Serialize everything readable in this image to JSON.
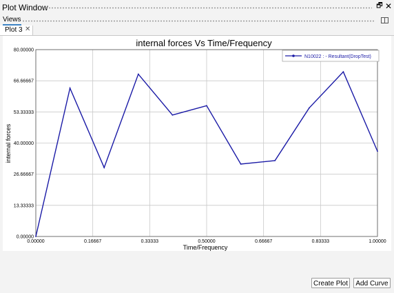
{
  "window": {
    "title": "Plot Window",
    "restore_glyph": "🗗",
    "close_glyph": "✕"
  },
  "views": {
    "label": "Views"
  },
  "tabs": [
    {
      "label": "Plot 3",
      "close_glyph": "✕"
    }
  ],
  "buttons": {
    "create_plot": "Create Plot",
    "add_curve": "Add Curve"
  },
  "colors": {
    "series": "#1a1aa6",
    "accent": "#3b82c4"
  },
  "chart_data": {
    "type": "line",
    "title": "internal forces Vs Time/Frequency",
    "xlabel": "Time/Frequency",
    "ylabel": "internal forces",
    "xlim": [
      0,
      1
    ],
    "ylim": [
      0,
      80
    ],
    "x_ticks": [
      0,
      0.16667,
      0.33333,
      0.5,
      0.66667,
      0.83333,
      1
    ],
    "x_tick_labels": [
      "0.00000",
      "0.16667",
      "0.33333",
      "0.50000",
      "0.66667",
      "0.83333",
      "1.00000"
    ],
    "y_ticks": [
      0,
      13.33333,
      26.66667,
      40,
      53.33333,
      66.66667,
      80
    ],
    "y_tick_labels": [
      "0.00000",
      "13.33333",
      "26.66667",
      "40.00000",
      "53.33333",
      "66.66667",
      "80.00000"
    ],
    "grid": true,
    "legend_position": "top-right",
    "series": [
      {
        "name": "N10022 : - Resultant(DropTest)",
        "x": [
          0,
          0.1,
          0.2,
          0.3,
          0.4,
          0.5,
          0.6,
          0.7,
          0.8,
          0.9,
          1.0
        ],
        "y": [
          0,
          63.5,
          29.5,
          69.5,
          52,
          56,
          31,
          32.5,
          55,
          70.5,
          36.5
        ]
      }
    ]
  }
}
